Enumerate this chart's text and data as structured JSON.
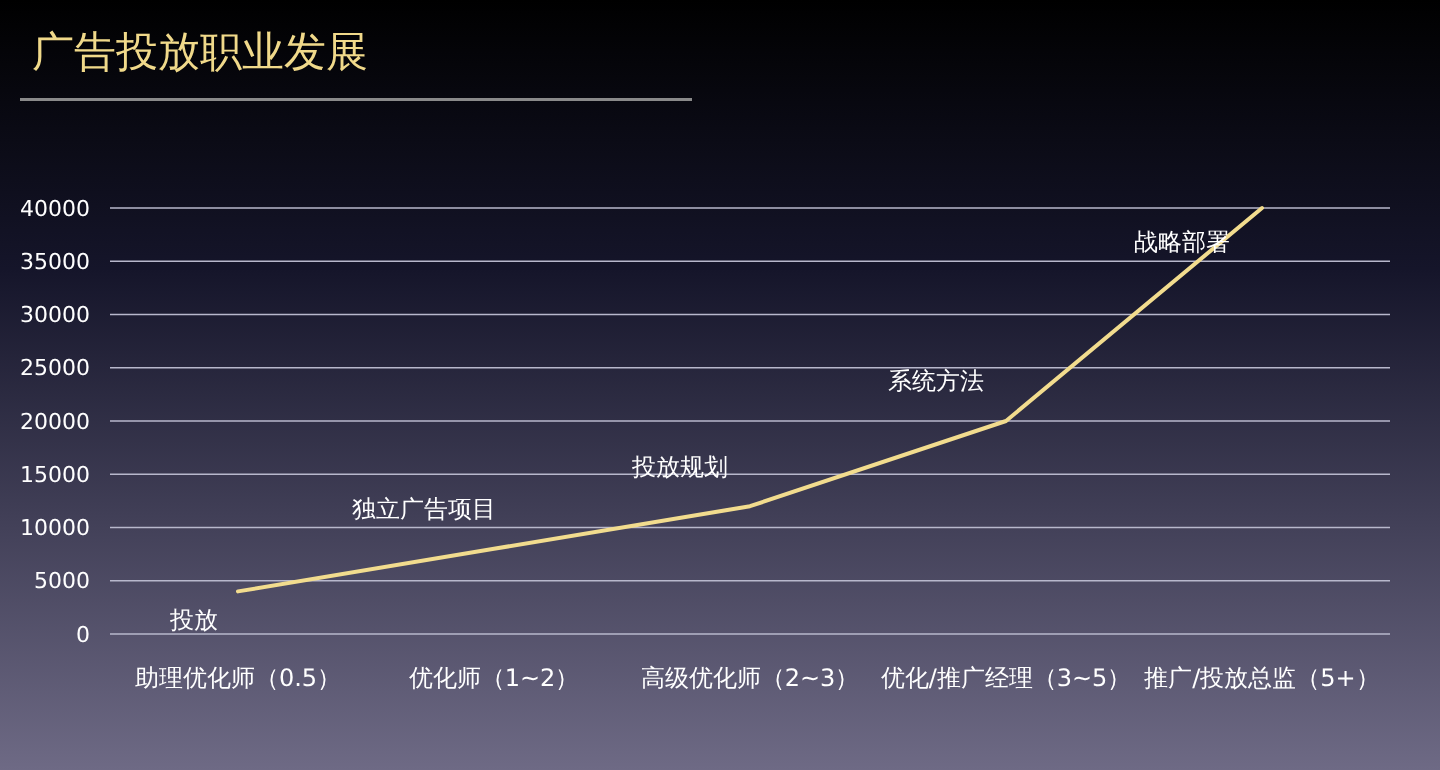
{
  "chart_data": {
    "type": "line",
    "title": "广告投放职业发展",
    "categories": [
      "助理优化师（0.5）",
      "优化师（1~2）",
      "高级优化师（2~3）",
      "优化/推广经理（3~5）",
      "推广/投放总监（5+）"
    ],
    "series": [
      {
        "color": "#f2dc8e",
        "values": [
          4000,
          8000,
          12000,
          20000,
          40000
        ]
      }
    ],
    "ylim": [
      0,
      40000
    ],
    "yticks": [
      0,
      5000,
      10000,
      15000,
      20000,
      25000,
      30000,
      35000,
      40000
    ],
    "grid": "y",
    "marker": "none",
    "line_style": "solid",
    "annotations": [
      {
        "text": "投放",
        "x": "助理优化师（0.5）",
        "y": 4000
      },
      {
        "text": "独立广告项目",
        "x": "优化师（1~2）",
        "y": 8000
      },
      {
        "text": "投放规划",
        "x": "高级优化师（2~3）",
        "y": 12000
      },
      {
        "text": "系统方法",
        "x": "优化/推广经理（3~5）",
        "y": 20000
      },
      {
        "text": "战略部署",
        "x": "推广/投放总监（5+）",
        "y": 40000
      }
    ]
  }
}
